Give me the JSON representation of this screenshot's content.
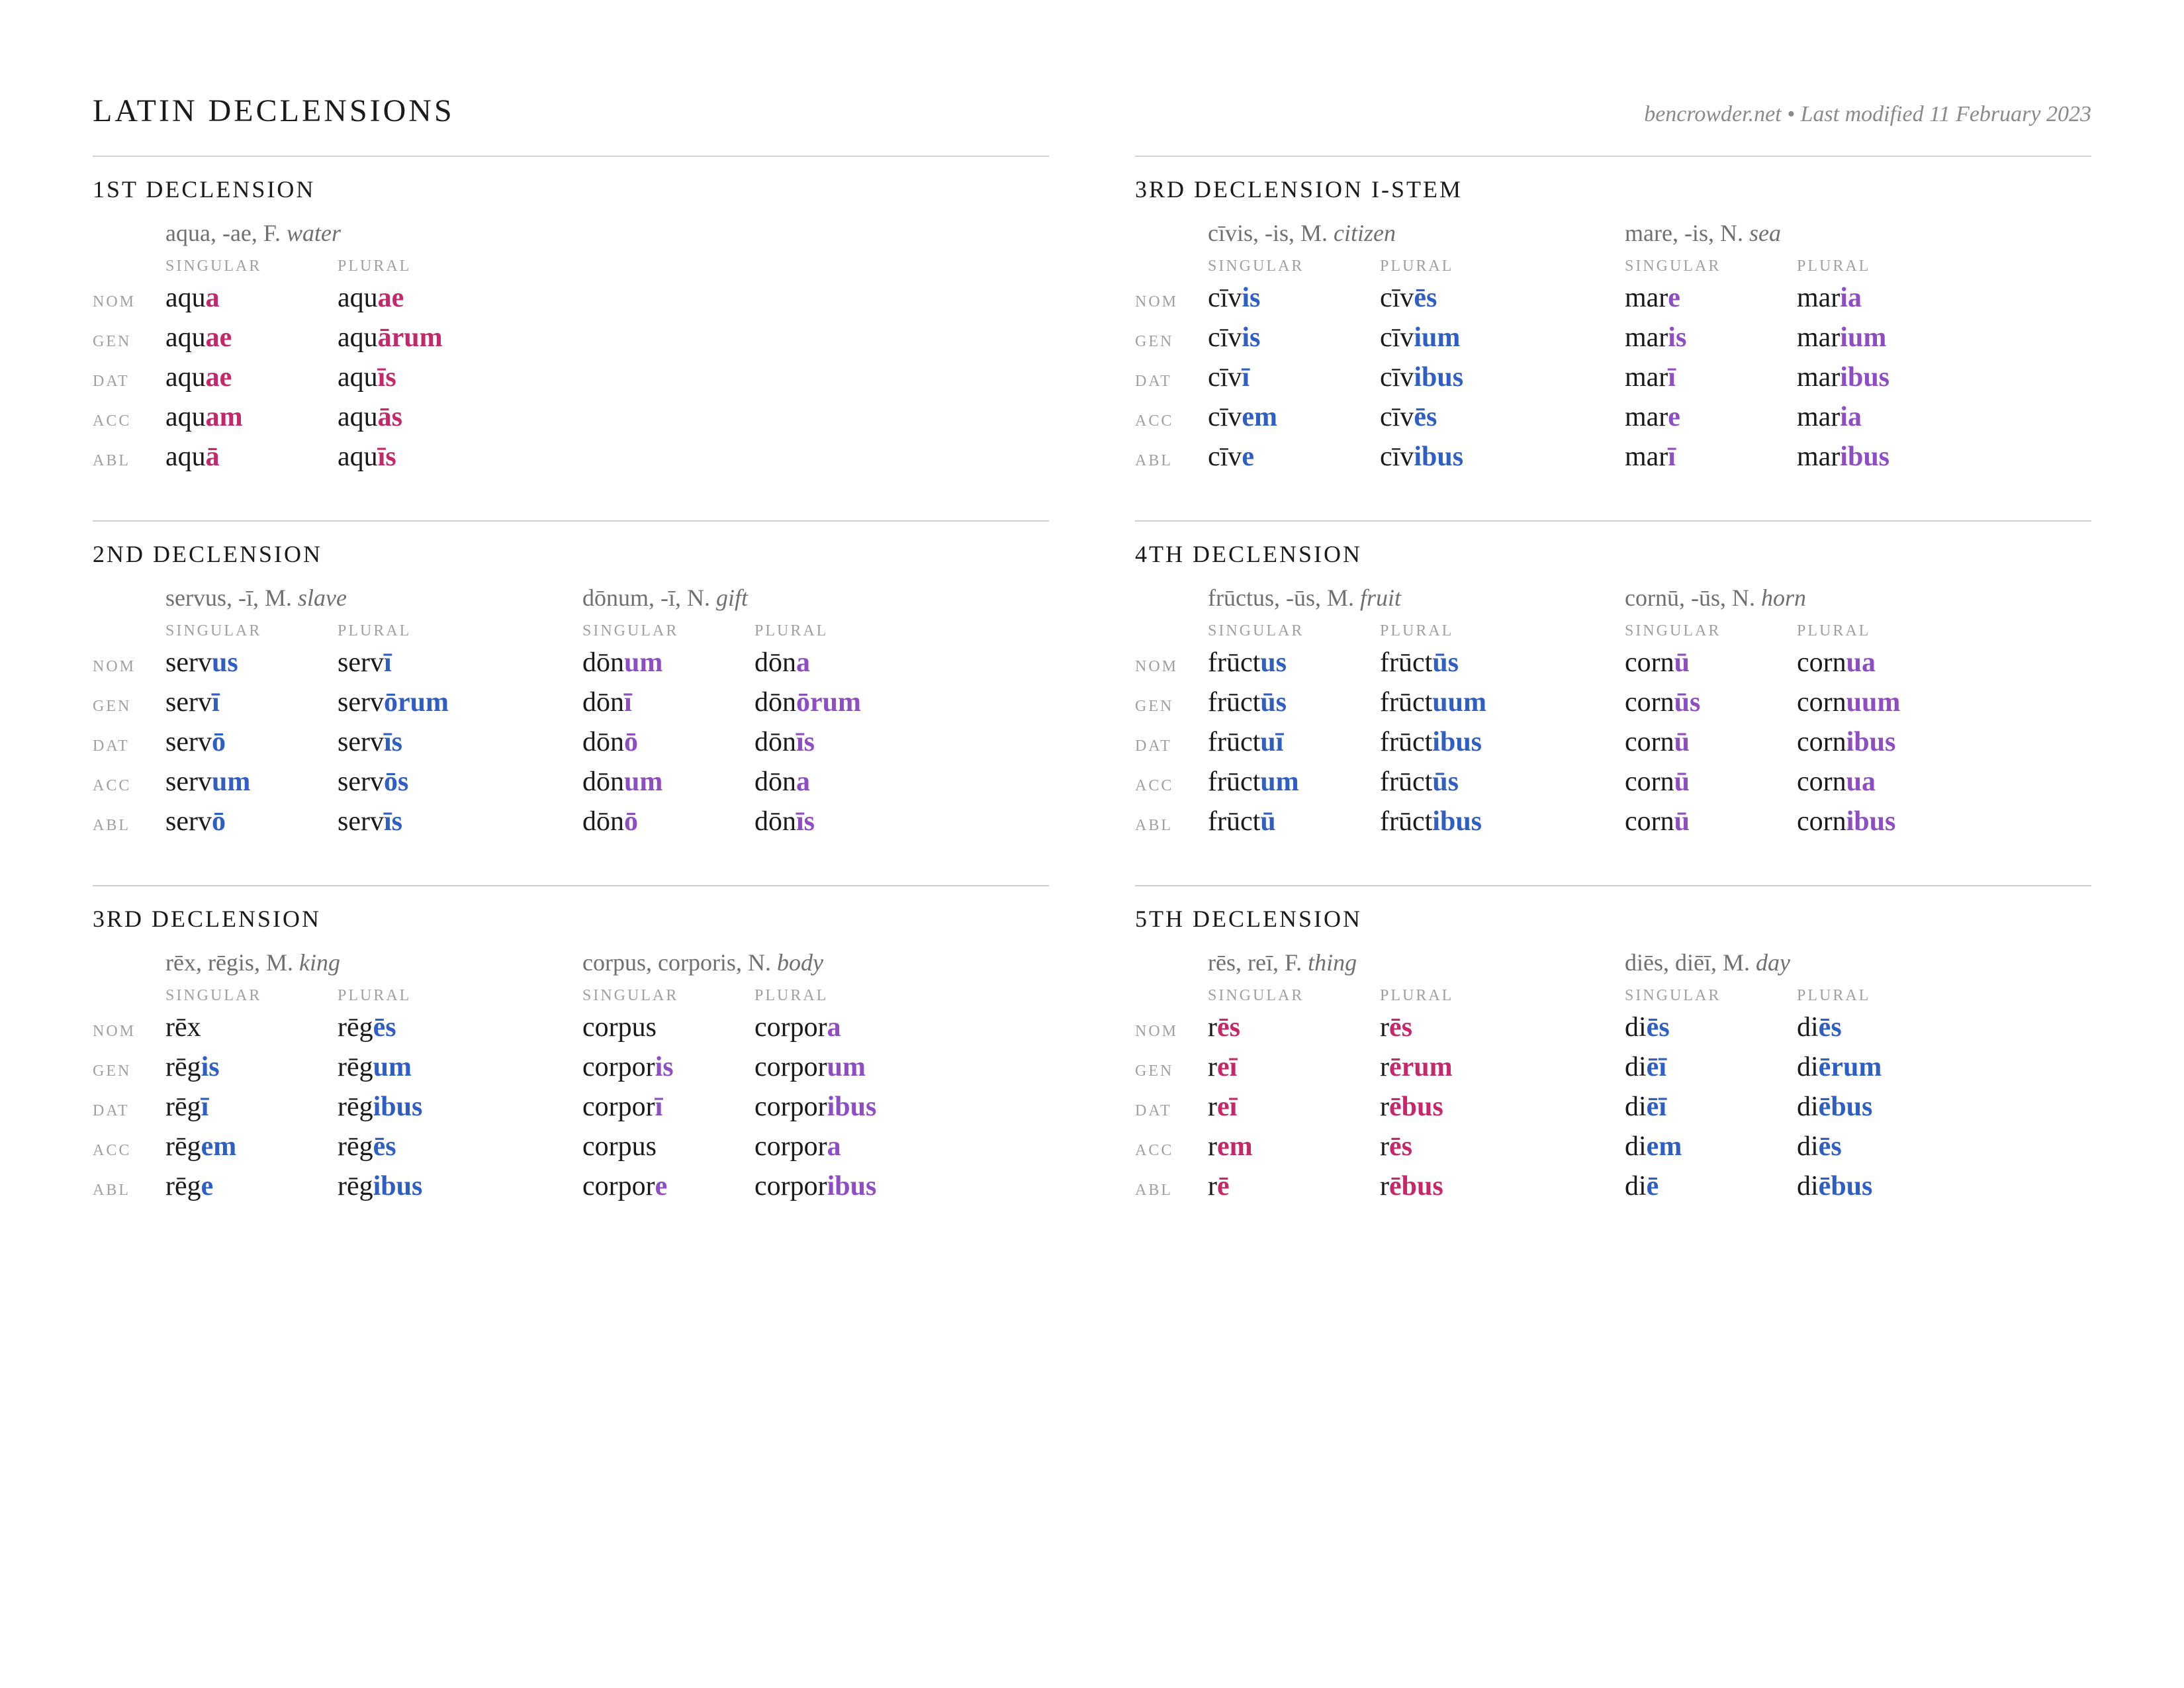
{
  "colors": {
    "text": "#1a1a1a",
    "muted": "#8a8a8a",
    "rule": "#d0d0d0",
    "masculine": "#2f5fc2",
    "feminine": "#c4286a",
    "neuter": "#8e4dc2",
    "background": "#ffffff"
  },
  "title": "LATIN DECLENSIONS",
  "meta": "bencrowder.net • Last modified 11 February 2023",
  "labels": {
    "singular": "SINGULAR",
    "plural": "PLURAL",
    "cases": [
      "NOM",
      "GEN",
      "DAT",
      "ACC",
      "ABL"
    ]
  },
  "sections": [
    {
      "heading": "1ST DECLENSION",
      "paradigms": [
        {
          "lemma": "aqua, -ae, F.",
          "gloss": "water",
          "gender": "f",
          "forms": [
            {
              "sg": [
                "aqu",
                "a"
              ],
              "pl": [
                "aqu",
                "ae"
              ]
            },
            {
              "sg": [
                "aqu",
                "ae"
              ],
              "pl": [
                "aqu",
                "ārum"
              ]
            },
            {
              "sg": [
                "aqu",
                "ae"
              ],
              "pl": [
                "aqu",
                "īs"
              ]
            },
            {
              "sg": [
                "aqu",
                "am"
              ],
              "pl": [
                "aqu",
                "ās"
              ]
            },
            {
              "sg": [
                "aqu",
                "ā"
              ],
              "pl": [
                "aqu",
                "īs"
              ]
            }
          ]
        }
      ]
    },
    {
      "heading": "3RD DECLENSION I-STEM",
      "paradigms": [
        {
          "lemma": "cīvis, -is, M.",
          "gloss": "citizen",
          "gender": "m",
          "forms": [
            {
              "sg": [
                "cīv",
                "is"
              ],
              "pl": [
                "cīv",
                "ēs"
              ]
            },
            {
              "sg": [
                "cīv",
                "is"
              ],
              "pl": [
                "cīv",
                "ium"
              ]
            },
            {
              "sg": [
                "cīv",
                "ī"
              ],
              "pl": [
                "cīv",
                "ibus"
              ]
            },
            {
              "sg": [
                "cīv",
                "em"
              ],
              "pl": [
                "cīv",
                "ēs"
              ]
            },
            {
              "sg": [
                "cīv",
                "e"
              ],
              "pl": [
                "cīv",
                "ibus"
              ]
            }
          ]
        },
        {
          "lemma": "mare, -is, N.",
          "gloss": "sea",
          "gender": "n",
          "forms": [
            {
              "sg": [
                "mar",
                "e"
              ],
              "pl": [
                "mar",
                "ia"
              ]
            },
            {
              "sg": [
                "mar",
                "is"
              ],
              "pl": [
                "mar",
                "ium"
              ]
            },
            {
              "sg": [
                "mar",
                "ī"
              ],
              "pl": [
                "mar",
                "ibus"
              ]
            },
            {
              "sg": [
                "mar",
                "e"
              ],
              "pl": [
                "mar",
                "ia"
              ]
            },
            {
              "sg": [
                "mar",
                "ī"
              ],
              "pl": [
                "mar",
                "ibus"
              ]
            }
          ]
        }
      ]
    },
    {
      "heading": "2ND DECLENSION",
      "paradigms": [
        {
          "lemma": "servus, -ī, M.",
          "gloss": "slave",
          "gender": "m",
          "forms": [
            {
              "sg": [
                "serv",
                "us"
              ],
              "pl": [
                "serv",
                "ī"
              ]
            },
            {
              "sg": [
                "serv",
                "ī"
              ],
              "pl": [
                "serv",
                "ōrum"
              ]
            },
            {
              "sg": [
                "serv",
                "ō"
              ],
              "pl": [
                "serv",
                "īs"
              ]
            },
            {
              "sg": [
                "serv",
                "um"
              ],
              "pl": [
                "serv",
                "ōs"
              ]
            },
            {
              "sg": [
                "serv",
                "ō"
              ],
              "pl": [
                "serv",
                "īs"
              ]
            }
          ]
        },
        {
          "lemma": "dōnum, -ī, N.",
          "gloss": "gift",
          "gender": "n",
          "forms": [
            {
              "sg": [
                "dōn",
                "um"
              ],
              "pl": [
                "dōn",
                "a"
              ]
            },
            {
              "sg": [
                "dōn",
                "ī"
              ],
              "pl": [
                "dōn",
                "ōrum"
              ]
            },
            {
              "sg": [
                "dōn",
                "ō"
              ],
              "pl": [
                "dōn",
                "īs"
              ]
            },
            {
              "sg": [
                "dōn",
                "um"
              ],
              "pl": [
                "dōn",
                "a"
              ]
            },
            {
              "sg": [
                "dōn",
                "ō"
              ],
              "pl": [
                "dōn",
                "īs"
              ]
            }
          ]
        }
      ]
    },
    {
      "heading": "4TH DECLENSION",
      "paradigms": [
        {
          "lemma": "frūctus, -ūs, M.",
          "gloss": "fruit",
          "gender": "m",
          "forms": [
            {
              "sg": [
                "frūct",
                "us"
              ],
              "pl": [
                "frūct",
                "ūs"
              ]
            },
            {
              "sg": [
                "frūct",
                "ūs"
              ],
              "pl": [
                "frūct",
                "uum"
              ]
            },
            {
              "sg": [
                "frūct",
                "uī"
              ],
              "pl": [
                "frūct",
                "ibus"
              ]
            },
            {
              "sg": [
                "frūct",
                "um"
              ],
              "pl": [
                "frūct",
                "ūs"
              ]
            },
            {
              "sg": [
                "frūct",
                "ū"
              ],
              "pl": [
                "frūct",
                "ibus"
              ]
            }
          ]
        },
        {
          "lemma": "cornū, -ūs, N.",
          "gloss": "horn",
          "gender": "n",
          "forms": [
            {
              "sg": [
                "corn",
                "ū"
              ],
              "pl": [
                "corn",
                "ua"
              ]
            },
            {
              "sg": [
                "corn",
                "ūs"
              ],
              "pl": [
                "corn",
                "uum"
              ]
            },
            {
              "sg": [
                "corn",
                "ū"
              ],
              "pl": [
                "corn",
                "ibus"
              ]
            },
            {
              "sg": [
                "corn",
                "ū"
              ],
              "pl": [
                "corn",
                "ua"
              ]
            },
            {
              "sg": [
                "corn",
                "ū"
              ],
              "pl": [
                "corn",
                "ibus"
              ]
            }
          ]
        }
      ]
    },
    {
      "heading": "3RD DECLENSION",
      "paradigms": [
        {
          "lemma": "rēx, rēgis, M.",
          "gloss": "king",
          "gender": "m",
          "forms": [
            {
              "sg": [
                "rēx",
                ""
              ],
              "pl": [
                "rēg",
                "ēs"
              ]
            },
            {
              "sg": [
                "rēg",
                "is"
              ],
              "pl": [
                "rēg",
                "um"
              ]
            },
            {
              "sg": [
                "rēg",
                "ī"
              ],
              "pl": [
                "rēg",
                "ibus"
              ]
            },
            {
              "sg": [
                "rēg",
                "em"
              ],
              "pl": [
                "rēg",
                "ēs"
              ]
            },
            {
              "sg": [
                "rēg",
                "e"
              ],
              "pl": [
                "rēg",
                "ibus"
              ]
            }
          ]
        },
        {
          "lemma": "corpus, corporis, N.",
          "gloss": "body",
          "gender": "n",
          "forms": [
            {
              "sg": [
                "corpus",
                ""
              ],
              "pl": [
                "corpor",
                "a"
              ]
            },
            {
              "sg": [
                "corpor",
                "is"
              ],
              "pl": [
                "corpor",
                "um"
              ]
            },
            {
              "sg": [
                "corpor",
                "ī"
              ],
              "pl": [
                "corpor",
                "ibus"
              ]
            },
            {
              "sg": [
                "corpus",
                ""
              ],
              "pl": [
                "corpor",
                "a"
              ]
            },
            {
              "sg": [
                "corpor",
                "e"
              ],
              "pl": [
                "corpor",
                "ibus"
              ]
            }
          ]
        }
      ]
    },
    {
      "heading": "5TH DECLENSION",
      "paradigms": [
        {
          "lemma": "rēs, reī, F.",
          "gloss": "thing",
          "gender": "f",
          "forms": [
            {
              "sg": [
                "r",
                "ēs"
              ],
              "pl": [
                "r",
                "ēs"
              ]
            },
            {
              "sg": [
                "r",
                "eī"
              ],
              "pl": [
                "r",
                "ērum"
              ]
            },
            {
              "sg": [
                "r",
                "eī"
              ],
              "pl": [
                "r",
                "ēbus"
              ]
            },
            {
              "sg": [
                "r",
                "em"
              ],
              "pl": [
                "r",
                "ēs"
              ]
            },
            {
              "sg": [
                "r",
                "ē"
              ],
              "pl": [
                "r",
                "ēbus"
              ]
            }
          ]
        },
        {
          "lemma": "diēs, diēī, M.",
          "gloss": "day",
          "gender": "m",
          "forms": [
            {
              "sg": [
                "di",
                "ēs"
              ],
              "pl": [
                "di",
                "ēs"
              ]
            },
            {
              "sg": [
                "di",
                "ēī"
              ],
              "pl": [
                "di",
                "ērum"
              ]
            },
            {
              "sg": [
                "di",
                "ēī"
              ],
              "pl": [
                "di",
                "ēbus"
              ]
            },
            {
              "sg": [
                "di",
                "em"
              ],
              "pl": [
                "di",
                "ēs"
              ]
            },
            {
              "sg": [
                "di",
                "ē"
              ],
              "pl": [
                "di",
                "ēbus"
              ]
            }
          ]
        }
      ]
    }
  ]
}
